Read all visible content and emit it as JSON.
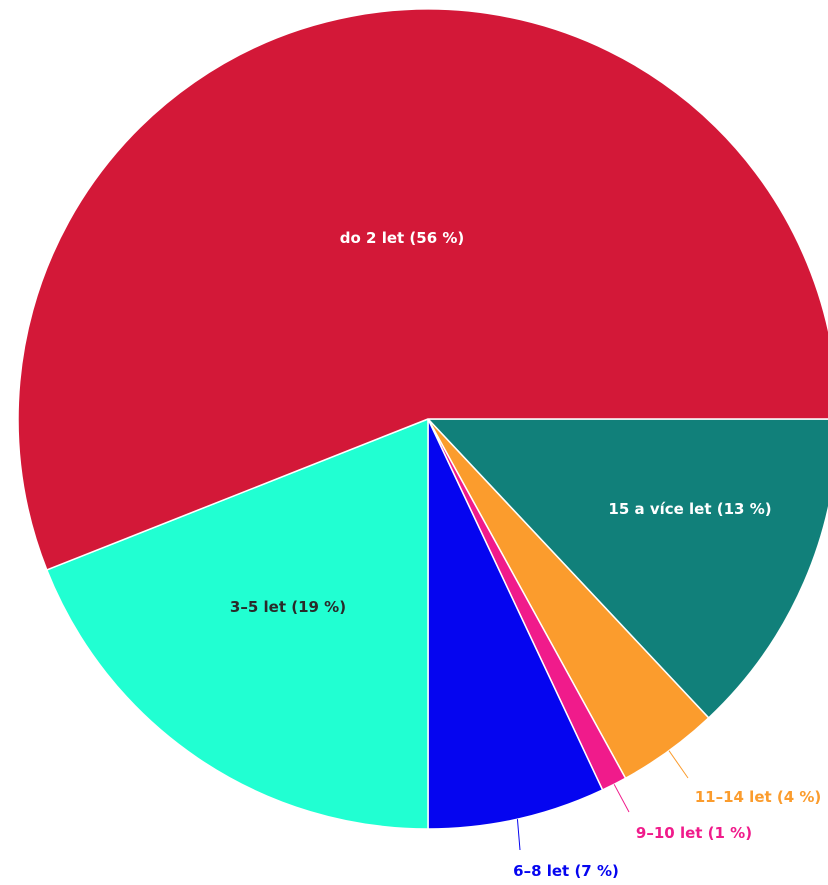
{
  "chart_data": {
    "type": "pie",
    "start_angle_deg": 0,
    "direction": "clockwise",
    "slices": [
      {
        "label": "15 a více let (13 %)",
        "value": 13,
        "color": "#11807a",
        "label_color": "#ffffff",
        "label_position": "inside"
      },
      {
        "label": "11–14 let (4 %)",
        "value": 4,
        "color": "#fb9c2d",
        "label_color": "#fb9c2d",
        "label_position": "outside"
      },
      {
        "label": "9–10 let (1 %)",
        "value": 1,
        "color": "#f01b8b",
        "label_color": "#f01b8b",
        "label_position": "outside"
      },
      {
        "label": "6–8 let (7 %)",
        "value": 7,
        "color": "#0505f0",
        "label_color": "#0505f0",
        "label_position": "outside"
      },
      {
        "label": "3–5 let (19 %)",
        "value": 19,
        "color": "#21ffd2",
        "label_color": "#2a2a2a",
        "label_position": "inside"
      },
      {
        "label": "do 2 let (56 %)",
        "value": 56,
        "color": "#d31838",
        "label_color": "#ffffff",
        "label_position": "inside"
      }
    ]
  }
}
